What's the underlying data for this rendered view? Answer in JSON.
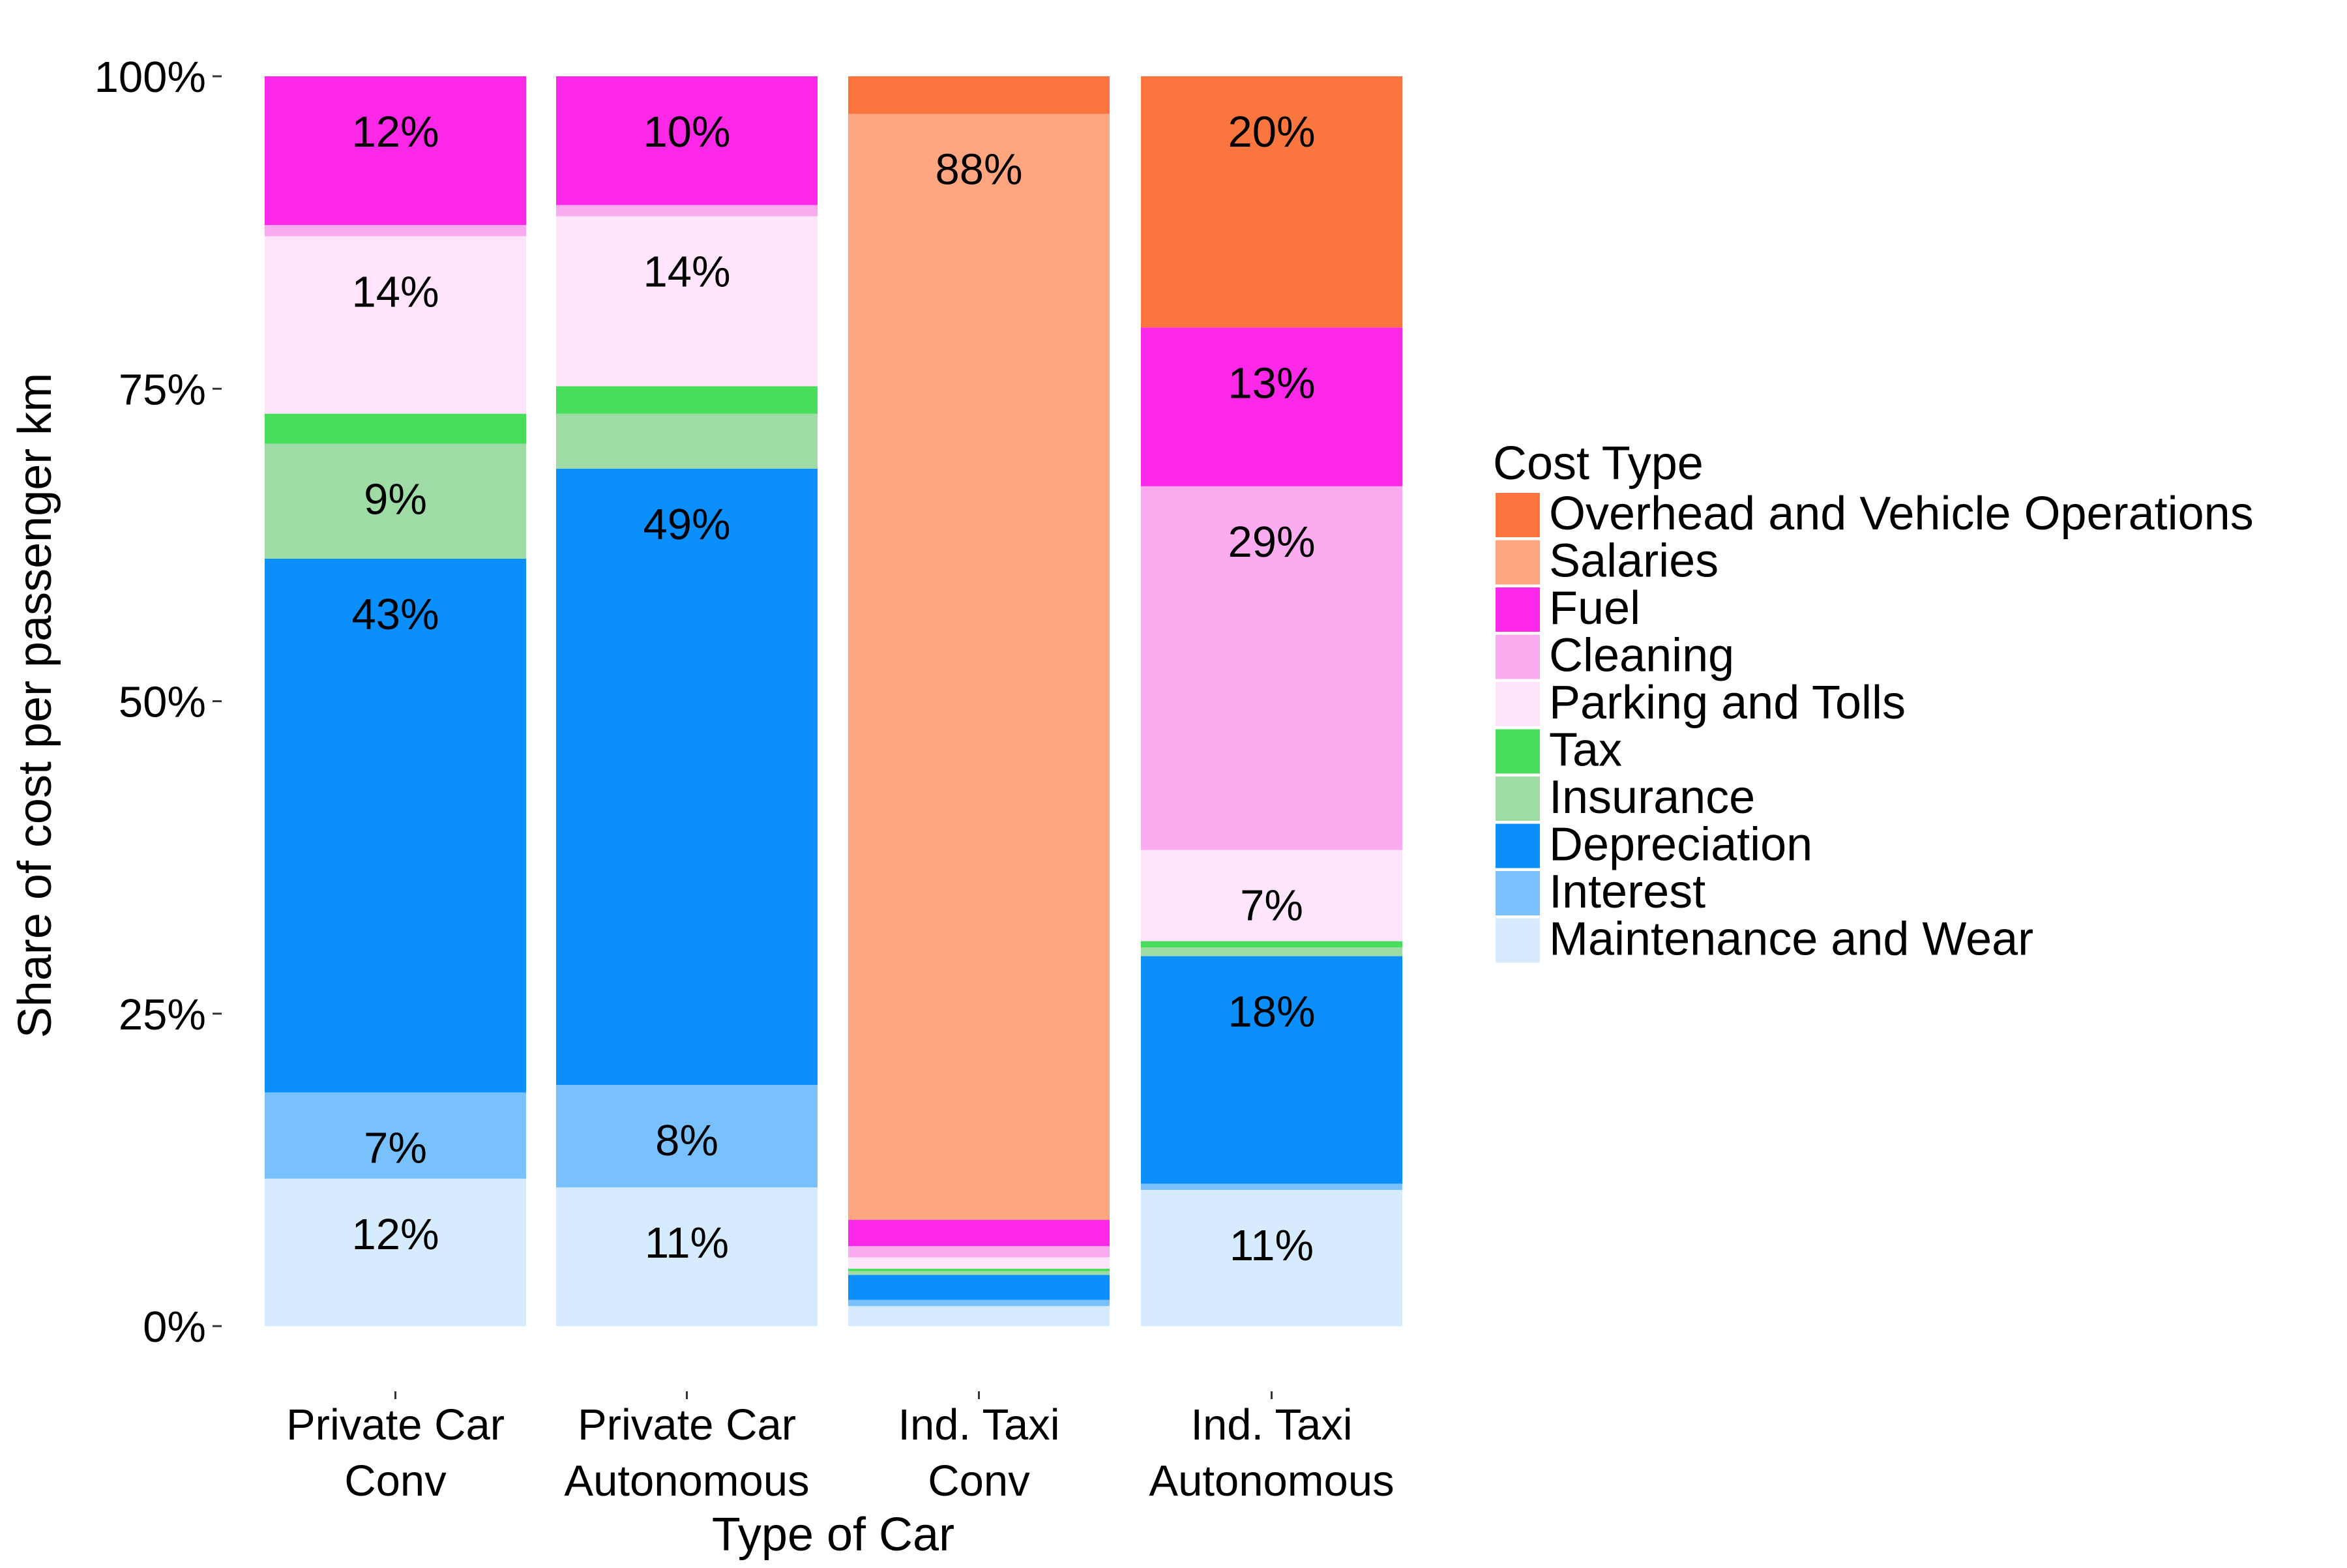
{
  "chart_data": {
    "type": "bar",
    "stacked": true,
    "xlabel": "Type of Car",
    "ylabel": "Share of cost per passenger km",
    "ylim": [
      0,
      1
    ],
    "yticks": [
      {
        "value": 0,
        "label": "0%"
      },
      {
        "value": 0.25,
        "label": "25%"
      },
      {
        "value": 0.5,
        "label": "50%"
      },
      {
        "value": 0.75,
        "label": "75%"
      },
      {
        "value": 1,
        "label": "100%"
      }
    ],
    "categories": [
      [
        "Private Car",
        "Conv"
      ],
      [
        "Private Car",
        "Autonomous"
      ],
      [
        "Ind. Taxi",
        "Conv"
      ],
      [
        "Ind. Taxi",
        "Autonomous"
      ]
    ],
    "grid": false,
    "legend": {
      "title": "Cost Type",
      "position": "right"
    },
    "series": [
      {
        "name": "Maintenance and Wear",
        "color": "#d6ebfe",
        "values": [
          0.118,
          0.111,
          0.016,
          0.109
        ],
        "labels": [
          "12%",
          "11%",
          "",
          "11%"
        ]
      },
      {
        "name": "Interest",
        "color": "#79c1fd",
        "values": [
          0.069,
          0.082,
          0.005,
          0.005
        ],
        "labels": [
          "7%",
          "8%",
          "",
          ""
        ]
      },
      {
        "name": "Depreciation",
        "color": "#0b8ffd",
        "values": [
          0.427,
          0.493,
          0.02,
          0.182
        ],
        "labels": [
          "43%",
          "49%",
          "",
          "18%"
        ]
      },
      {
        "name": "Insurance",
        "color": "#9fdca5",
        "values": [
          0.092,
          0.044,
          0.003,
          0.007
        ],
        "labels": [
          "9%",
          "",
          "",
          ""
        ]
      },
      {
        "name": "Tax",
        "color": "#48dd5b",
        "values": [
          0.024,
          0.022,
          0.002,
          0.005
        ],
        "labels": [
          "",
          "",
          "",
          ""
        ]
      },
      {
        "name": "Parking and Tolls",
        "color": "#fee5fb",
        "values": [
          0.142,
          0.136,
          0.009,
          0.073
        ],
        "labels": [
          "14%",
          "14%",
          "",
          "7%"
        ]
      },
      {
        "name": "Cleaning",
        "color": "#fbacf1",
        "values": [
          0.009,
          0.009,
          0.009,
          0.291
        ],
        "labels": [
          "",
          "",
          "",
          "29%"
        ]
      },
      {
        "name": "Fuel",
        "color": "#fd27e7",
        "values": [
          0.119,
          0.103,
          0.021,
          0.127
        ],
        "labels": [
          "12%",
          "10%",
          "",
          "13%"
        ]
      },
      {
        "name": "Salaries",
        "color": "#ffa580",
        "values": [
          0,
          0,
          0.885,
          0
        ],
        "labels": [
          "",
          "",
          "88%",
          ""
        ]
      },
      {
        "name": "Overhead and Vehicle Operations",
        "color": "#fb763e",
        "values": [
          0,
          0,
          0.03,
          0.201
        ],
        "labels": [
          "",
          "",
          "",
          "20%"
        ]
      }
    ]
  }
}
